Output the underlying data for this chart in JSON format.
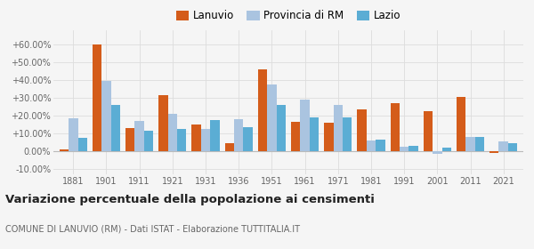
{
  "years": [
    1881,
    1901,
    1911,
    1921,
    1931,
    1936,
    1951,
    1961,
    1971,
    1981,
    1991,
    2001,
    2011,
    2021
  ],
  "lanuvio": [
    1.0,
    60.0,
    13.0,
    31.5,
    15.0,
    4.5,
    46.0,
    16.5,
    16.0,
    23.5,
    27.0,
    22.5,
    30.5,
    -1.0
  ],
  "provincia_rm": [
    18.5,
    39.5,
    17.0,
    21.0,
    12.5,
    18.0,
    37.5,
    29.0,
    26.0,
    6.0,
    2.5,
    -1.5,
    8.0,
    5.5
  ],
  "lazio": [
    7.5,
    26.0,
    11.5,
    12.5,
    17.5,
    13.5,
    26.0,
    19.0,
    19.0,
    6.5,
    3.0,
    2.0,
    8.0,
    4.5
  ],
  "color_lanuvio": "#d45c1a",
  "color_provincia": "#aac4e0",
  "color_lazio": "#5badd4",
  "title": "Variazione percentuale della popolazione ai censimenti",
  "subtitle": "COMUNE DI LANUVIO (RM) - Dati ISTAT - Elaborazione TUTTITALIA.IT",
  "legend_labels": [
    "Lanuvio",
    "Provincia di RM",
    "Lazio"
  ],
  "ylim": [
    -13,
    68
  ],
  "yticks": [
    -10,
    0,
    10,
    20,
    30,
    40,
    50,
    60
  ],
  "ytick_labels": [
    "-10.00%",
    "0.00%",
    "+10.00%",
    "+20.00%",
    "+30.00%",
    "+40.00%",
    "+50.00%",
    "+60.00%"
  ],
  "bar_width": 0.28,
  "bg_color": "#f5f5f5",
  "grid_color": "#dddddd"
}
